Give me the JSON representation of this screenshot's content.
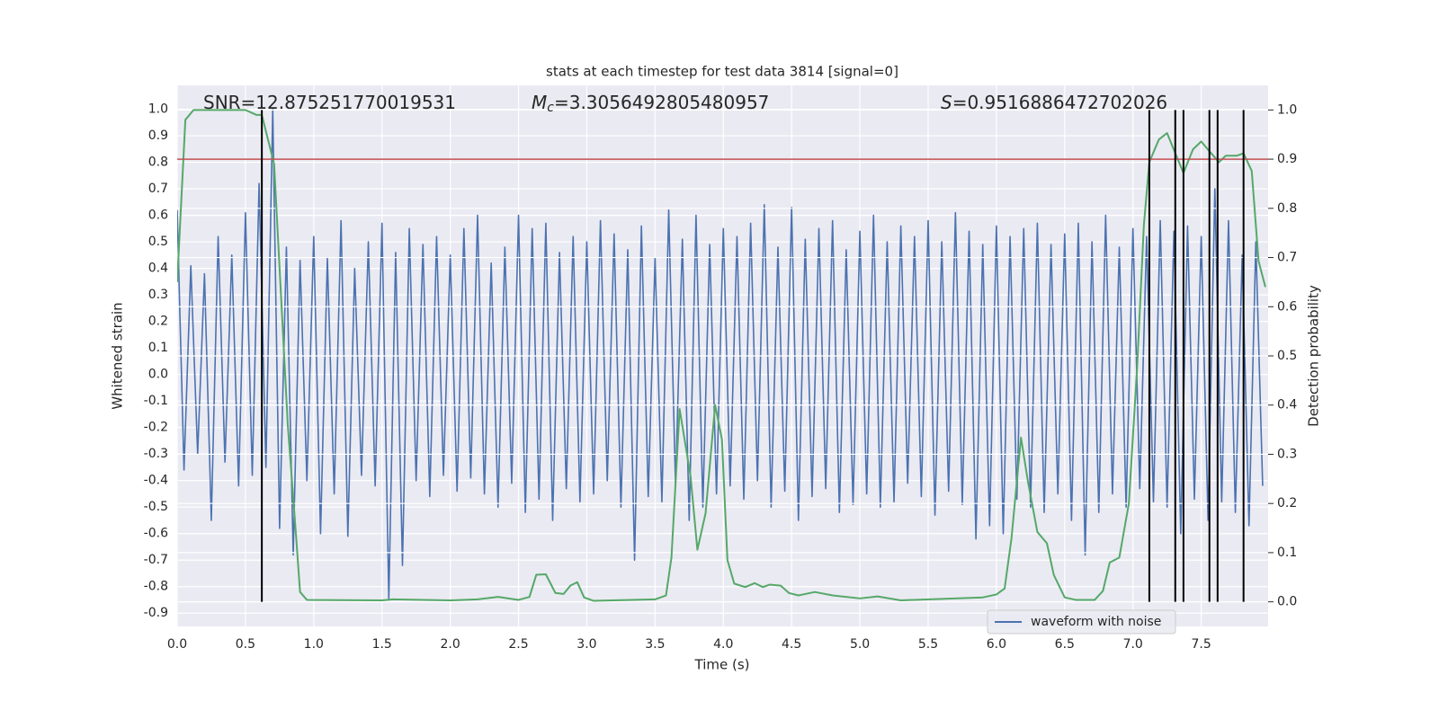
{
  "chart_data": {
    "type": "line",
    "title": "stats at each timestep for test data 3814 [signal=0]",
    "xlabel": "Time (s)",
    "ylabel": "Whitened strain",
    "y2label": "Detection probability",
    "annotations": [
      {
        "text": "SNR=12.875251770019531"
      },
      {
        "symbol": "M",
        "subscript": "c",
        "text": "=3.3056492805480957"
      },
      {
        "symbol": "S",
        "text": "=0.9516886472702026"
      }
    ],
    "xlim": [
      0,
      7.99
    ],
    "xticks": [
      {
        "value": 0,
        "label": "0.0"
      },
      0.5,
      {
        "value": 1,
        "label": "1.0"
      },
      1.5,
      {
        "value": 2,
        "label": "2.0"
      },
      2.5,
      {
        "value": 3,
        "label": "3.0"
      },
      3.5,
      {
        "value": 4,
        "label": "4.0"
      },
      4.5,
      {
        "value": 5,
        "label": "5.0"
      },
      5.5,
      {
        "value": 6,
        "label": "6.0"
      },
      6.5,
      {
        "value": 7,
        "label": "7.0"
      },
      7.5
    ],
    "ylim": [
      -0.95,
      1.09
    ],
    "yticks": [
      {
        "value": 1,
        "label": "1.0"
      },
      0.9,
      0.8,
      0.7,
      0.6,
      0.5,
      0.4,
      0.3,
      0.2,
      0.1,
      {
        "value": 0,
        "label": "0.0"
      },
      -0.1,
      -0.2,
      -0.3,
      -0.4,
      -0.5,
      -0.6,
      -0.7,
      -0.8,
      -0.9
    ],
    "y2lim": [
      -0.05,
      1.05
    ],
    "y2ticks": [
      {
        "value": 1,
        "label": "1.0"
      },
      0.9,
      0.8,
      0.7,
      0.6,
      0.5,
      0.4,
      0.3,
      0.2,
      0.1,
      {
        "value": 0,
        "label": "0.0"
      }
    ],
    "grid": true,
    "legend": "lower right",
    "series": [
      {
        "name": "waveform with noise",
        "color": "#4c72b0",
        "x": [
          0,
          0.05,
          0.1,
          0.15,
          0.2,
          0.25,
          0.3,
          0.35,
          0.4,
          0.45,
          0.5,
          0.55,
          0.6,
          0.65,
          0.7,
          0.75,
          0.8,
          0.85,
          0.9,
          0.95,
          1,
          1.05,
          1.1,
          1.15,
          1.2,
          1.25,
          1.3,
          1.35,
          1.4,
          1.45,
          1.5,
          1.55,
          1.6,
          1.65,
          1.7,
          1.75,
          1.8,
          1.85,
          1.9,
          1.95,
          2,
          2.05,
          2.1,
          2.15,
          2.2,
          2.25,
          2.3,
          2.35,
          2.4,
          2.45,
          2.5,
          2.55,
          2.6,
          2.65,
          2.7,
          2.75,
          2.8,
          2.85,
          2.9,
          2.95,
          3,
          3.05,
          3.1,
          3.15,
          3.2,
          3.25,
          3.3,
          3.35,
          3.4,
          3.45,
          3.5,
          3.55,
          3.6,
          3.65,
          3.7,
          3.75,
          3.8,
          3.85,
          3.9,
          3.95,
          4,
          4.05,
          4.1,
          4.15,
          4.2,
          4.25,
          4.3,
          4.35,
          4.4,
          4.45,
          4.5,
          4.55,
          4.6,
          4.65,
          4.7,
          4.75,
          4.8,
          4.85,
          4.9,
          4.95,
          5,
          5.05,
          5.1,
          5.15,
          5.2,
          5.25,
          5.3,
          5.35,
          5.4,
          5.45,
          5.5,
          5.55,
          5.6,
          5.65,
          5.7,
          5.75,
          5.8,
          5.85,
          5.9,
          5.95,
          6,
          6.05,
          6.1,
          6.15,
          6.2,
          6.25,
          6.3,
          6.35,
          6.4,
          6.45,
          6.5,
          6.55,
          6.6,
          6.65,
          6.7,
          6.75,
          6.8,
          6.85,
          6.9,
          6.95,
          7,
          7.05,
          7.1,
          7.15,
          7.2,
          7.25,
          7.3,
          7.35,
          7.4,
          7.45,
          7.5,
          7.55,
          7.6,
          7.65,
          7.7,
          7.75,
          7.8,
          7.85,
          7.9,
          7.95
        ],
        "values": [
          0.62,
          -0.36,
          0.41,
          -0.3,
          0.38,
          -0.55,
          0.52,
          -0.33,
          0.45,
          -0.42,
          0.61,
          -0.38,
          0.72,
          -0.35,
          1.0,
          -0.58,
          0.48,
          -0.68,
          0.43,
          -0.4,
          0.52,
          -0.6,
          0.44,
          -0.45,
          0.58,
          -0.61,
          0.4,
          -0.38,
          0.5,
          -0.42,
          0.57,
          -0.85,
          0.46,
          -0.72,
          0.55,
          -0.4,
          0.49,
          -0.46,
          0.52,
          -0.38,
          0.45,
          -0.44,
          0.55,
          -0.39,
          0.6,
          -0.45,
          0.42,
          -0.5,
          0.48,
          -0.41,
          0.6,
          -0.52,
          0.55,
          -0.47,
          0.57,
          -0.55,
          0.46,
          -0.43,
          0.52,
          -0.48,
          0.5,
          -0.45,
          0.58,
          -0.4,
          0.53,
          -0.5,
          0.47,
          -0.7,
          0.56,
          -0.46,
          0.44,
          -0.48,
          0.62,
          -0.42,
          0.51,
          -0.55,
          0.6,
          -0.5,
          0.49,
          -0.45,
          0.55,
          -0.42,
          0.52,
          -0.47,
          0.57,
          -0.4,
          0.64,
          -0.5,
          0.48,
          -0.44,
          0.63,
          -0.55,
          0.51,
          -0.46,
          0.55,
          -0.43,
          0.58,
          -0.52,
          0.47,
          -0.49,
          0.54,
          -0.45,
          0.6,
          -0.5,
          0.5,
          -0.48,
          0.56,
          -0.41,
          0.52,
          -0.46,
          0.58,
          -0.53,
          0.5,
          -0.44,
          0.61,
          -0.49,
          0.54,
          -0.62,
          0.49,
          -0.57,
          0.56,
          -0.6,
          0.52,
          -0.47,
          0.55,
          -0.5,
          0.57,
          -0.52,
          0.49,
          -0.45,
          0.53,
          -0.55,
          0.57,
          -0.68,
          0.5,
          -0.52,
          0.6,
          -0.45,
          0.48,
          -0.5,
          0.55,
          -0.43,
          0.52,
          -0.48,
          0.58,
          -0.5,
          0.54,
          -0.6,
          0.56,
          -0.47,
          0.52,
          -0.55,
          0.7,
          -0.48,
          0.58,
          -0.52,
          0.45,
          -0.57,
          0.5,
          -0.42
        ]
      },
      {
        "color": "#55a868",
        "axis": "y2",
        "x": [
          0,
          0.06,
          0.12,
          0.5,
          0.58,
          0.62,
          0.71,
          0.81,
          0.87,
          0.9,
          0.95,
          1.5,
          1.58,
          2.0,
          2.2,
          2.35,
          2.5,
          2.58,
          2.63,
          2.7,
          2.77,
          2.83,
          2.88,
          2.93,
          2.98,
          3.05,
          3.5,
          3.58,
          3.62,
          3.68,
          3.76,
          3.81,
          3.87,
          3.94,
          3.99,
          4.03,
          4.08,
          4.16,
          4.23,
          4.29,
          4.34,
          4.42,
          4.48,
          4.55,
          4.67,
          4.8,
          5.0,
          5.13,
          5.3,
          5.9,
          6.0,
          6.06,
          6.11,
          6.18,
          6.23,
          6.3,
          6.37,
          6.42,
          6.5,
          6.58,
          6.72,
          6.78,
          6.83,
          6.9,
          6.97,
          7.03,
          7.08,
          7.12,
          7.19,
          7.25,
          7.31,
          7.37,
          7.44,
          7.5,
          7.56,
          7.63,
          7.68,
          7.76,
          7.81,
          7.87,
          7.92,
          7.97
        ],
        "values": [
          0.65,
          0.98,
          1.0,
          1.0,
          0.99,
          0.99,
          0.89,
          0.36,
          0.137,
          0.02,
          0.004,
          0.003,
          0.005,
          0.003,
          0.005,
          0.01,
          0.004,
          0.01,
          0.055,
          0.056,
          0.018,
          0.016,
          0.033,
          0.04,
          0.009,
          0.002,
          0.005,
          0.013,
          0.09,
          0.392,
          0.255,
          0.106,
          0.18,
          0.4,
          0.33,
          0.085,
          0.037,
          0.03,
          0.038,
          0.03,
          0.035,
          0.033,
          0.018,
          0.013,
          0.02,
          0.013,
          0.007,
          0.011,
          0.003,
          0.009,
          0.015,
          0.027,
          0.128,
          0.334,
          0.246,
          0.142,
          0.119,
          0.055,
          0.009,
          0.004,
          0.004,
          0.022,
          0.08,
          0.09,
          0.2,
          0.474,
          0.766,
          0.894,
          0.94,
          0.953,
          0.912,
          0.872,
          0.92,
          0.936,
          0.916,
          0.894,
          0.907,
          0.907,
          0.912,
          0.876,
          0.693,
          0.64
        ]
      }
    ],
    "hlines": [
      {
        "y": 0.9,
        "axis": "y2",
        "color": "#c44e52"
      }
    ],
    "vlines": {
      "x": [
        0.62,
        7.12,
        7.31,
        7.37,
        7.56,
        7.62,
        7.81
      ],
      "axis": "y2",
      "color": "#000000"
    }
  }
}
